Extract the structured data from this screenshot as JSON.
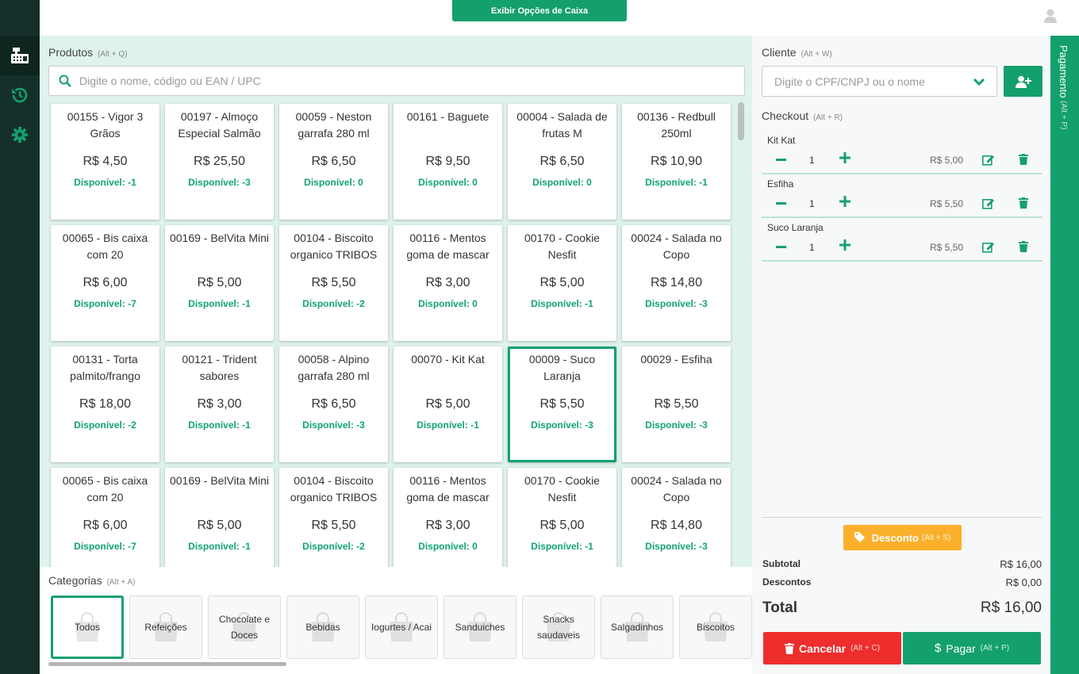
{
  "topbar": {
    "options_label": "Exibir Opções de Caixa"
  },
  "products": {
    "title": "Produtos",
    "shortcut": "(Alt + Q)",
    "search_placeholder": "Digite o nome, código ou EAN / UPC",
    "items": [
      {
        "name": "00155 - Vigor 3 Grãos",
        "price": "R$ 4,50",
        "stock": "Disponível: -1"
      },
      {
        "name": "00197 - Almoço Especial Salmão",
        "price": "R$ 25,50",
        "stock": "Disponível: -3"
      },
      {
        "name": "00059 - Neston garrafa 280 ml",
        "price": "R$ 6,50",
        "stock": "Disponível: 0"
      },
      {
        "name": "00161 - Baguete",
        "price": "R$ 9,50",
        "stock": "Disponível: 0"
      },
      {
        "name": "00004 - Salada de frutas M",
        "price": "R$ 6,50",
        "stock": "Disponível: 0"
      },
      {
        "name": "00136 - Redbull 250ml",
        "price": "R$ 10,90",
        "stock": "Disponível: -1"
      },
      {
        "name": "00065 - Bis caixa com 20",
        "price": "R$ 6,00",
        "stock": "Disponível: -7"
      },
      {
        "name": "00169 - BelVita Mini",
        "price": "R$ 5,00",
        "stock": "Disponível: -1"
      },
      {
        "name": "00104 - Biscoito organico TRIBOS",
        "price": "R$ 5,50",
        "stock": "Disponível: -2"
      },
      {
        "name": "00116 - Mentos goma de mascar",
        "price": "R$ 3,00",
        "stock": "Disponível: 0"
      },
      {
        "name": "00170 - Cookie Nesfit",
        "price": "R$ 5,00",
        "stock": "Disponível: -1"
      },
      {
        "name": "00024 - Salada no Copo",
        "price": "R$ 14,80",
        "stock": "Disponível: -3"
      },
      {
        "name": "00131 - Torta palmito/frango",
        "price": "R$ 18,00",
        "stock": "Disponível: -2"
      },
      {
        "name": "00121 - Trident sabores",
        "price": "R$ 3,00",
        "stock": "Disponível: -1"
      },
      {
        "name": "00058 - Alpino garrafa 280 ml",
        "price": "R$ 6,50",
        "stock": "Disponível: -3"
      },
      {
        "name": "00070 - Kit Kat",
        "price": "R$ 5,00",
        "stock": "Disponível: -1"
      },
      {
        "name": "00009 - Suco Laranja",
        "price": "R$ 5,50",
        "stock": "Disponível: -3",
        "selected": true
      },
      {
        "name": "00029 - Esfiha",
        "price": "R$ 5,50",
        "stock": "Disponível: -3"
      },
      {
        "name": "00065 - Bis caixa com 20",
        "price": "R$ 6,00",
        "stock": "Disponível: -7"
      },
      {
        "name": "00169 - BelVita Mini",
        "price": "R$ 5,00",
        "stock": "Disponível: -1"
      },
      {
        "name": "00104 - Biscoito organico TRIBOS",
        "price": "R$ 5,50",
        "stock": "Disponível: -2"
      },
      {
        "name": "00116 - Mentos goma de mascar",
        "price": "R$ 3,00",
        "stock": "Disponível: 0"
      },
      {
        "name": "00170 - Cookie Nesfit",
        "price": "R$ 5,00",
        "stock": "Disponível: -1"
      },
      {
        "name": "00024 - Salada no Copo",
        "price": "R$ 14,80",
        "stock": "Disponível: -3"
      }
    ]
  },
  "categories": {
    "title": "Categorias",
    "shortcut": "(Alt + A)",
    "items": [
      "Todos",
      "Refeições",
      "Chocolate e Doces",
      "Bebidas",
      "Iogurtes / Acai",
      "Sanduiches",
      "Snacks saudaveis",
      "Salgadinhos",
      "Biscoitos"
    ],
    "active_index": 0
  },
  "client": {
    "title": "Cliente",
    "shortcut": "(Alt + W)",
    "placeholder": "Digite o CPF/CNPJ ou o nome"
  },
  "checkout": {
    "title": "Checkout",
    "shortcut": "(Alt + R)",
    "items": [
      {
        "name": "Kit Kat",
        "qty": "1",
        "price": "R$ 5,00"
      },
      {
        "name": "Esfiha",
        "qty": "1",
        "price": "R$ 5,50"
      },
      {
        "name": "Suco Laranja",
        "qty": "1",
        "price": "R$ 5,50"
      }
    ]
  },
  "summary": {
    "discount_label": "Desconto",
    "discount_shortcut": "(Alt + S)",
    "subtotal_label": "Subtotal",
    "subtotal_value": "R$ 16,00",
    "discounts_label": "Descontos",
    "discounts_value": "R$ 0,00",
    "total_label": "Total",
    "total_value": "R$ 16,00"
  },
  "actions": {
    "cancel_label": "Cancelar",
    "cancel_shortcut": "(Alt + C)",
    "pay_label": "Pagar",
    "pay_shortcut": "(Alt + P)"
  },
  "payment_strip": {
    "label": "Pagamento",
    "shortcut": "(Alt + P)"
  },
  "colors": {
    "accent": "#14a06c",
    "danger": "#ee2d2d",
    "warning": "#fbb02c",
    "sidebar": "#15302a",
    "panel": "#dff3ec"
  }
}
